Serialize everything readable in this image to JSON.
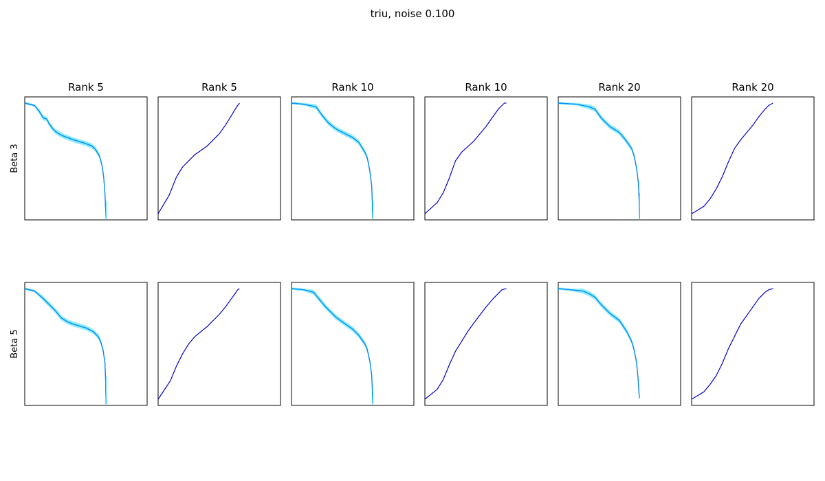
{
  "figure": {
    "title": "triu, noise 0.100"
  },
  "colors": {
    "main_line": "#0000cd",
    "band_fill": "#00d8f0",
    "band_line": "#00a8ff",
    "axes": "#000000"
  },
  "chart_data": [
    {
      "type": "line",
      "panel": "r0c0",
      "title": "Rank 5",
      "ylabel": "Beta 3",
      "xlim": [
        0,
        1
      ],
      "ylim": [
        0,
        1
      ],
      "ticks": "none",
      "series": [
        {
          "x": [
            0,
            0.08,
            0.12,
            0.15,
            0.18,
            0.2,
            0.23,
            0.25,
            0.28,
            0.3,
            0.32,
            0.4,
            0.5,
            0.55,
            0.58,
            0.61,
            0.63,
            0.645,
            0.655,
            0.66,
            0.663,
            0.664
          ],
          "y": [
            0.95,
            0.93,
            0.88,
            0.83,
            0.82,
            0.78,
            0.74,
            0.72,
            0.7,
            0.69,
            0.68,
            0.65,
            0.62,
            0.6,
            0.57,
            0.52,
            0.45,
            0.35,
            0.22,
            0.1,
            0.04,
            0.01
          ],
          "band_low": [
            0.94,
            0.92,
            0.86,
            0.81,
            0.8,
            0.76,
            0.72,
            0.7,
            0.68,
            0.67,
            0.66,
            0.63,
            0.6,
            0.58,
            0.55,
            0.5,
            0.43,
            0.33,
            0.2,
            0.08,
            0.02,
            0.0
          ],
          "band_high": [
            0.96,
            0.94,
            0.9,
            0.85,
            0.84,
            0.8,
            0.76,
            0.74,
            0.72,
            0.71,
            0.7,
            0.67,
            0.64,
            0.62,
            0.59,
            0.54,
            0.47,
            0.37,
            0.24,
            0.12,
            0.06,
            0.02
          ],
          "end_x": 0.664,
          "end_y": 0.15
        }
      ]
    },
    {
      "type": "line",
      "panel": "r0c1",
      "title": "Rank 5",
      "xlim": [
        0,
        1
      ],
      "ylim": [
        0,
        1
      ],
      "ticks": "none",
      "series": [
        {
          "x": [
            0,
            0.09,
            0.15,
            0.2,
            0.25,
            0.3,
            0.4,
            0.5,
            0.55,
            0.6,
            0.63,
            0.65,
            0.665
          ],
          "y": [
            0.05,
            0.2,
            0.35,
            0.43,
            0.48,
            0.53,
            0.6,
            0.7,
            0.77,
            0.85,
            0.9,
            0.93,
            0.95
          ]
        }
      ]
    },
    {
      "type": "line",
      "panel": "r0c2",
      "title": "Rank 10",
      "xlim": [
        0,
        1
      ],
      "ylim": [
        0,
        1
      ],
      "ticks": "none",
      "series": [
        {
          "x": [
            0,
            0.1,
            0.2,
            0.25,
            0.3,
            0.35,
            0.38,
            0.42,
            0.5,
            0.55,
            0.6,
            0.62,
            0.64,
            0.655,
            0.66,
            0.663,
            0.665
          ],
          "y": [
            0.95,
            0.94,
            0.92,
            0.85,
            0.79,
            0.75,
            0.73,
            0.71,
            0.67,
            0.63,
            0.55,
            0.5,
            0.4,
            0.28,
            0.15,
            0.05,
            0.01
          ],
          "band_low": [
            0.94,
            0.93,
            0.9,
            0.83,
            0.77,
            0.73,
            0.71,
            0.69,
            0.65,
            0.61,
            0.53,
            0.48,
            0.38,
            0.26,
            0.13,
            0.03,
            0.0
          ],
          "band_high": [
            0.96,
            0.95,
            0.94,
            0.87,
            0.81,
            0.77,
            0.75,
            0.73,
            0.69,
            0.65,
            0.57,
            0.52,
            0.42,
            0.3,
            0.17,
            0.07,
            0.02
          ],
          "end_x": 0.665,
          "end_y": 0.15
        }
      ]
    },
    {
      "type": "line",
      "panel": "r0c3",
      "title": "Rank 10",
      "xlim": [
        0,
        1
      ],
      "ylim": [
        0,
        1
      ],
      "ticks": "none",
      "series": [
        {
          "x": [
            0,
            0.1,
            0.15,
            0.2,
            0.25,
            0.3,
            0.4,
            0.5,
            0.55,
            0.6,
            0.63,
            0.65,
            0.665
          ],
          "y": [
            0.05,
            0.14,
            0.22,
            0.34,
            0.48,
            0.55,
            0.64,
            0.76,
            0.83,
            0.9,
            0.93,
            0.95,
            0.95
          ]
        }
      ]
    },
    {
      "type": "line",
      "panel": "r0c4",
      "title": "Rank 20",
      "xlim": [
        0,
        1
      ],
      "ylim": [
        0,
        1
      ],
      "ticks": "none",
      "series": [
        {
          "x": [
            0,
            0.15,
            0.25,
            0.3,
            0.35,
            0.38,
            0.42,
            0.5,
            0.55,
            0.6,
            0.62,
            0.64,
            0.655,
            0.66,
            0.663,
            0.664
          ],
          "y": [
            0.95,
            0.94,
            0.92,
            0.9,
            0.83,
            0.8,
            0.76,
            0.71,
            0.65,
            0.58,
            0.52,
            0.42,
            0.3,
            0.18,
            0.08,
            0.01
          ],
          "band_low": [
            0.94,
            0.93,
            0.9,
            0.88,
            0.81,
            0.78,
            0.74,
            0.69,
            0.63,
            0.56,
            0.5,
            0.4,
            0.28,
            0.16,
            0.06,
            0.0
          ],
          "band_high": [
            0.96,
            0.95,
            0.94,
            0.92,
            0.85,
            0.82,
            0.78,
            0.73,
            0.67,
            0.6,
            0.54,
            0.44,
            0.32,
            0.2,
            0.1,
            0.02
          ],
          "end_x": 0.664,
          "end_y": 0.22
        }
      ]
    },
    {
      "type": "line",
      "panel": "r0c5",
      "title": "Rank 20",
      "xlim": [
        0,
        1
      ],
      "ylim": [
        0,
        1
      ],
      "ticks": "none",
      "series": [
        {
          "x": [
            0,
            0.1,
            0.15,
            0.2,
            0.25,
            0.3,
            0.35,
            0.4,
            0.5,
            0.55,
            0.6,
            0.63,
            0.665
          ],
          "y": [
            0.05,
            0.11,
            0.17,
            0.25,
            0.35,
            0.47,
            0.58,
            0.65,
            0.77,
            0.84,
            0.9,
            0.93,
            0.95
          ]
        }
      ]
    },
    {
      "type": "line",
      "panel": "r1c0",
      "title": "",
      "ylabel": "Beta 5",
      "xlim": [
        0,
        1
      ],
      "ylim": [
        0,
        1
      ],
      "ticks": "none",
      "series": [
        {
          "x": [
            0,
            0.08,
            0.15,
            0.2,
            0.25,
            0.3,
            0.35,
            0.4,
            0.5,
            0.56,
            0.6,
            0.62,
            0.64,
            0.655,
            0.66,
            0.663,
            0.664
          ],
          "y": [
            0.95,
            0.93,
            0.87,
            0.82,
            0.77,
            0.71,
            0.68,
            0.66,
            0.63,
            0.6,
            0.56,
            0.52,
            0.45,
            0.35,
            0.22,
            0.08,
            0.01
          ],
          "band_low": [
            0.94,
            0.92,
            0.85,
            0.8,
            0.75,
            0.69,
            0.66,
            0.64,
            0.61,
            0.58,
            0.54,
            0.5,
            0.43,
            0.33,
            0.2,
            0.06,
            0.0
          ],
          "band_high": [
            0.96,
            0.94,
            0.89,
            0.84,
            0.79,
            0.73,
            0.7,
            0.68,
            0.65,
            0.62,
            0.58,
            0.54,
            0.47,
            0.37,
            0.24,
            0.1,
            0.02
          ],
          "end_x": 0.664,
          "end_y": 0.24
        }
      ]
    },
    {
      "type": "line",
      "panel": "r1c1",
      "title": "",
      "xlim": [
        0,
        1
      ],
      "ylim": [
        0,
        1
      ],
      "ticks": "none",
      "series": [
        {
          "x": [
            0,
            0.1,
            0.15,
            0.2,
            0.25,
            0.3,
            0.4,
            0.5,
            0.55,
            0.6,
            0.63,
            0.65,
            0.665
          ],
          "y": [
            0.05,
            0.2,
            0.32,
            0.42,
            0.5,
            0.56,
            0.64,
            0.74,
            0.8,
            0.87,
            0.91,
            0.94,
            0.95
          ]
        }
      ]
    },
    {
      "type": "line",
      "panel": "r1c2",
      "title": "",
      "xlim": [
        0,
        1
      ],
      "ylim": [
        0,
        1
      ],
      "ticks": "none",
      "series": [
        {
          "x": [
            0,
            0.1,
            0.18,
            0.23,
            0.28,
            0.32,
            0.36,
            0.4,
            0.5,
            0.55,
            0.6,
            0.62,
            0.64,
            0.655,
            0.66,
            0.663,
            0.665
          ],
          "y": [
            0.95,
            0.94,
            0.92,
            0.86,
            0.8,
            0.76,
            0.72,
            0.69,
            0.62,
            0.57,
            0.5,
            0.45,
            0.36,
            0.25,
            0.14,
            0.05,
            0.01
          ],
          "band_low": [
            0.94,
            0.93,
            0.9,
            0.84,
            0.78,
            0.74,
            0.7,
            0.67,
            0.6,
            0.55,
            0.48,
            0.43,
            0.34,
            0.23,
            0.12,
            0.03,
            0.0
          ],
          "band_high": [
            0.96,
            0.95,
            0.94,
            0.88,
            0.82,
            0.78,
            0.74,
            0.71,
            0.64,
            0.59,
            0.52,
            0.47,
            0.38,
            0.27,
            0.16,
            0.07,
            0.02
          ],
          "end_x": 0.665,
          "end_y": 0.12
        }
      ]
    },
    {
      "type": "line",
      "panel": "r1c3",
      "title": "",
      "xlim": [
        0,
        1
      ],
      "ylim": [
        0,
        1
      ],
      "ticks": "none",
      "series": [
        {
          "x": [
            0,
            0.1,
            0.15,
            0.2,
            0.25,
            0.3,
            0.35,
            0.4,
            0.5,
            0.55,
            0.6,
            0.63,
            0.665
          ],
          "y": [
            0.05,
            0.13,
            0.21,
            0.33,
            0.44,
            0.52,
            0.6,
            0.67,
            0.8,
            0.86,
            0.91,
            0.94,
            0.95
          ]
        }
      ]
    },
    {
      "type": "line",
      "panel": "r1c4",
      "title": "",
      "xlim": [
        0,
        1
      ],
      "ylim": [
        0,
        1
      ],
      "ticks": "none",
      "series": [
        {
          "x": [
            0,
            0.1,
            0.2,
            0.25,
            0.3,
            0.35,
            0.38,
            0.42,
            0.5,
            0.56,
            0.6,
            0.62,
            0.64,
            0.652,
            0.66,
            0.663
          ],
          "y": [
            0.95,
            0.94,
            0.93,
            0.91,
            0.88,
            0.82,
            0.79,
            0.75,
            0.69,
            0.6,
            0.52,
            0.45,
            0.35,
            0.22,
            0.1,
            0.06
          ],
          "band_low": [
            0.94,
            0.93,
            0.91,
            0.89,
            0.86,
            0.8,
            0.77,
            0.73,
            0.67,
            0.58,
            0.5,
            0.43,
            0.33,
            0.2,
            0.08,
            0.04
          ],
          "band_high": [
            0.96,
            0.95,
            0.95,
            0.93,
            0.9,
            0.84,
            0.81,
            0.77,
            0.71,
            0.62,
            0.54,
            0.47,
            0.37,
            0.24,
            0.12,
            0.08
          ],
          "end_x": 0.663,
          "end_y": 0.06
        }
      ]
    },
    {
      "type": "line",
      "panel": "r1c5",
      "title": "",
      "xlim": [
        0,
        1
      ],
      "ylim": [
        0,
        1
      ],
      "ticks": "none",
      "series": [
        {
          "x": [
            0,
            0.1,
            0.15,
            0.2,
            0.25,
            0.3,
            0.35,
            0.4,
            0.5,
            0.55,
            0.6,
            0.63,
            0.665
          ],
          "y": [
            0.05,
            0.11,
            0.17,
            0.24,
            0.34,
            0.46,
            0.56,
            0.66,
            0.8,
            0.87,
            0.92,
            0.94,
            0.95
          ]
        }
      ]
    }
  ]
}
